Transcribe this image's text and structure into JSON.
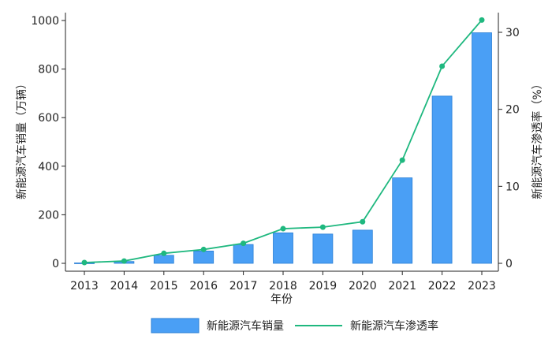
{
  "chart_data": {
    "type": "bar",
    "categories": [
      "2013",
      "2014",
      "2015",
      "2016",
      "2017",
      "2018",
      "2019",
      "2020",
      "2021",
      "2022",
      "2023"
    ],
    "xlabel": "年份",
    "ylabel_left": "新能源汽车销量（万辆）",
    "ylabel_right": "新能源汽车渗透率（%）",
    "ylim_left": [
      0,
      1000
    ],
    "yticks_left": [
      0,
      200,
      400,
      600,
      800,
      1000
    ],
    "ylim_right": [
      0,
      32.5
    ],
    "yticks_right": [
      0,
      10,
      20,
      30
    ],
    "grid": false,
    "legend_position": "bottom",
    "series": [
      {
        "name": "新能源汽车销量",
        "type": "bar",
        "axis": "left",
        "color": "#4a9ff5",
        "values": [
          1.8,
          7.5,
          33.1,
          50.7,
          77.7,
          125.6,
          120.6,
          136.7,
          352.1,
          688.7,
          949.5
        ]
      },
      {
        "name": "新能源汽车渗透率",
        "type": "line",
        "axis": "right",
        "color": "#1fb87f",
        "values": [
          0.1,
          0.3,
          1.3,
          1.8,
          2.6,
          4.5,
          4.7,
          5.4,
          13.4,
          25.6,
          31.6
        ]
      }
    ]
  }
}
